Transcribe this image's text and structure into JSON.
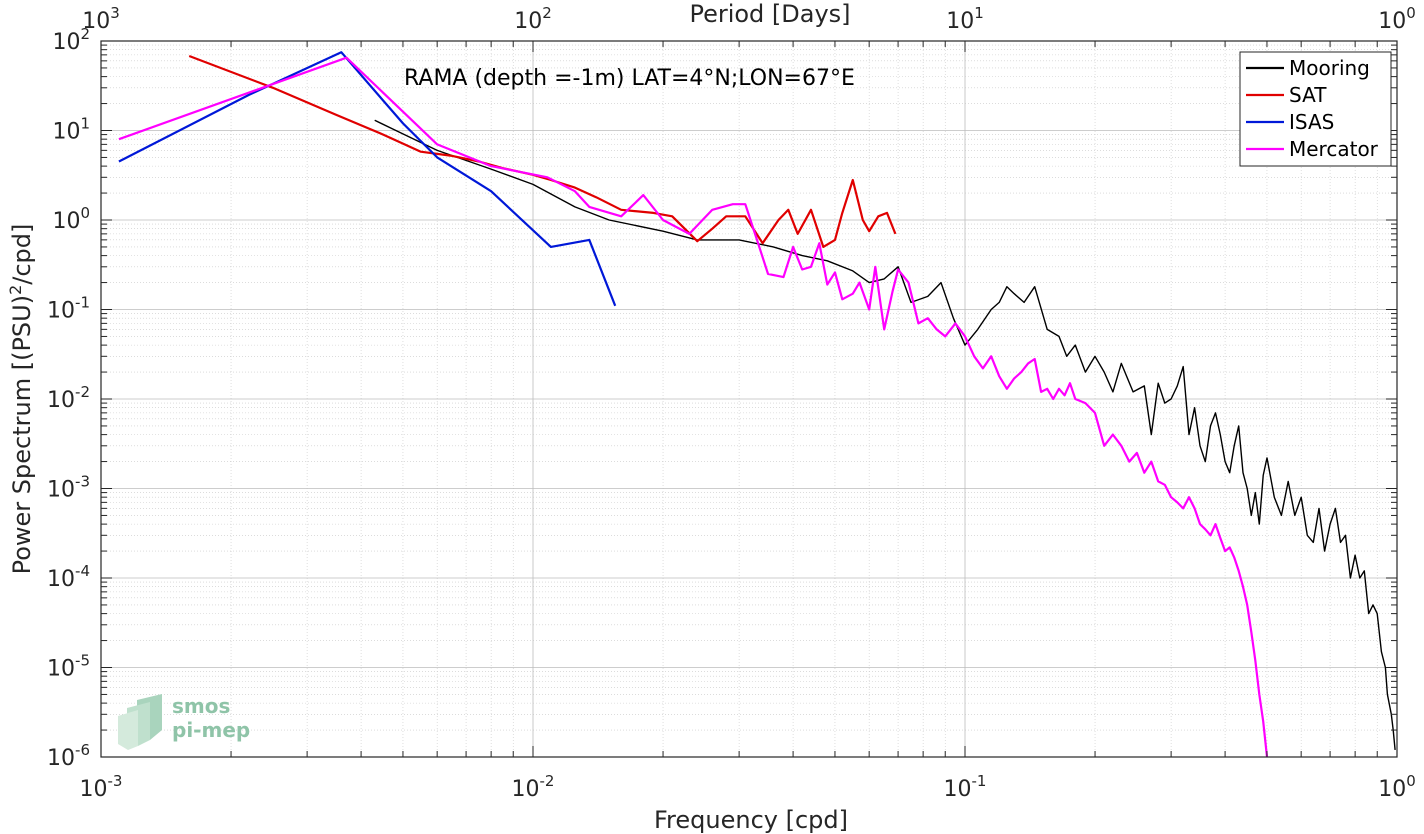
{
  "chart_data": {
    "type": "line",
    "xscale": "log",
    "yscale": "log",
    "xlim": [
      0.001,
      1
    ],
    "ylim": [
      1e-06,
      100
    ],
    "grid": true,
    "legend_position": "top-right",
    "xlabel": "Frequency [cpd]",
    "ylabel_main": "Power Spectrum [(PSU)",
    "ylabel_sup": "2",
    "ylabel_tail": "/cpd]",
    "top_xlabel": "Period [Days]",
    "annotation": "RAMA (depth =-1m) LAT=4°N;LON=67°E",
    "x_ticks": [
      {
        "value": 0.001,
        "base": "10",
        "exp": "-3"
      },
      {
        "value": 0.01,
        "base": "10",
        "exp": "-2"
      },
      {
        "value": 0.1,
        "base": "10",
        "exp": "-1"
      },
      {
        "value": 1,
        "base": "10",
        "exp": "0"
      }
    ],
    "top_ticks": [
      {
        "value": 0.001,
        "base": "10",
        "exp": "3"
      },
      {
        "value": 0.01,
        "base": "10",
        "exp": "2"
      },
      {
        "value": 0.1,
        "base": "10",
        "exp": "1"
      },
      {
        "value": 1,
        "base": "10",
        "exp": "0"
      }
    ],
    "y_ticks": [
      {
        "value": 100,
        "base": "10",
        "exp": "2"
      },
      {
        "value": 10,
        "base": "10",
        "exp": "1"
      },
      {
        "value": 1,
        "base": "10",
        "exp": "0"
      },
      {
        "value": 0.1,
        "base": "10",
        "exp": "-1"
      },
      {
        "value": 0.01,
        "base": "10",
        "exp": "-2"
      },
      {
        "value": 0.001,
        "base": "10",
        "exp": "-3"
      },
      {
        "value": 0.0001,
        "base": "10",
        "exp": "-4"
      },
      {
        "value": 1e-05,
        "base": "10",
        "exp": "-5"
      },
      {
        "value": 1e-06,
        "base": "10",
        "exp": "-6"
      }
    ],
    "series": [
      {
        "name": "Mooring",
        "color": "#000000",
        "points": [
          [
            0.0043,
            13
          ],
          [
            0.006,
            6
          ],
          [
            0.008,
            3.7
          ],
          [
            0.01,
            2.5
          ],
          [
            0.0125,
            1.4
          ],
          [
            0.015,
            1
          ],
          [
            0.02,
            0.75
          ],
          [
            0.024,
            0.6
          ],
          [
            0.03,
            0.6
          ],
          [
            0.036,
            0.5
          ],
          [
            0.042,
            0.4
          ],
          [
            0.048,
            0.35
          ],
          [
            0.055,
            0.27
          ],
          [
            0.06,
            0.2
          ],
          [
            0.065,
            0.22
          ],
          [
            0.07,
            0.3
          ],
          [
            0.075,
            0.12
          ],
          [
            0.082,
            0.14
          ],
          [
            0.088,
            0.2
          ],
          [
            0.094,
            0.08
          ],
          [
            0.1,
            0.04
          ],
          [
            0.107,
            0.06
          ],
          [
            0.115,
            0.1
          ],
          [
            0.12,
            0.12
          ],
          [
            0.125,
            0.18
          ],
          [
            0.13,
            0.15
          ],
          [
            0.137,
            0.12
          ],
          [
            0.145,
            0.18
          ],
          [
            0.155,
            0.06
          ],
          [
            0.165,
            0.05
          ],
          [
            0.172,
            0.03
          ],
          [
            0.18,
            0.04
          ],
          [
            0.19,
            0.02
          ],
          [
            0.2,
            0.03
          ],
          [
            0.21,
            0.02
          ],
          [
            0.22,
            0.012
          ],
          [
            0.23,
            0.025
          ],
          [
            0.245,
            0.012
          ],
          [
            0.26,
            0.014
          ],
          [
            0.27,
            0.004
          ],
          [
            0.28,
            0.015
          ],
          [
            0.29,
            0.009
          ],
          [
            0.3,
            0.01
          ],
          [
            0.31,
            0.014
          ],
          [
            0.32,
            0.023
          ],
          [
            0.33,
            0.004
          ],
          [
            0.34,
            0.008
          ],
          [
            0.35,
            0.003
          ],
          [
            0.36,
            0.002
          ],
          [
            0.37,
            0.005
          ],
          [
            0.38,
            0.007
          ],
          [
            0.39,
            0.004
          ],
          [
            0.4,
            0.002
          ],
          [
            0.41,
            0.0015
          ],
          [
            0.42,
            0.003
          ],
          [
            0.43,
            0.005
          ],
          [
            0.44,
            0.0015
          ],
          [
            0.45,
            0.001
          ],
          [
            0.46,
            0.0005
          ],
          [
            0.47,
            0.0009
          ],
          [
            0.48,
            0.0004
          ],
          [
            0.49,
            0.0014
          ],
          [
            0.5,
            0.0022
          ],
          [
            0.52,
            0.0008
          ],
          [
            0.54,
            0.0005
          ],
          [
            0.56,
            0.0012
          ],
          [
            0.58,
            0.0005
          ],
          [
            0.6,
            0.0008
          ],
          [
            0.62,
            0.0003
          ],
          [
            0.64,
            0.00025
          ],
          [
            0.66,
            0.0006
          ],
          [
            0.68,
            0.0002
          ],
          [
            0.7,
            0.0004
          ],
          [
            0.72,
            0.0006
          ],
          [
            0.74,
            0.00025
          ],
          [
            0.76,
            0.0003
          ],
          [
            0.78,
            0.0001
          ],
          [
            0.8,
            0.00018
          ],
          [
            0.82,
            0.0001
          ],
          [
            0.84,
            0.00012
          ],
          [
            0.86,
            4e-05
          ],
          [
            0.88,
            5e-05
          ],
          [
            0.9,
            4e-05
          ],
          [
            0.92,
            1.5e-05
          ],
          [
            0.94,
            1e-05
          ],
          [
            0.95,
            5e-06
          ],
          [
            0.97,
            3e-06
          ],
          [
            0.98,
            2e-06
          ],
          [
            0.99,
            1.2e-06
          ]
        ]
      },
      {
        "name": "SAT",
        "color": "#e00000",
        "points": [
          [
            0.0016,
            68
          ],
          [
            0.0025,
            30
          ],
          [
            0.0035,
            15
          ],
          [
            0.0045,
            9
          ],
          [
            0.0055,
            5.8
          ],
          [
            0.0065,
            5.2
          ],
          [
            0.0075,
            4.5
          ],
          [
            0.0085,
            3.8
          ],
          [
            0.01,
            3.2
          ],
          [
            0.011,
            2.8
          ],
          [
            0.0125,
            2.3
          ],
          [
            0.014,
            1.8
          ],
          [
            0.016,
            1.3
          ],
          [
            0.019,
            1.2
          ],
          [
            0.021,
            1.1
          ],
          [
            0.024,
            0.58
          ],
          [
            0.026,
            0.8
          ],
          [
            0.028,
            1.1
          ],
          [
            0.031,
            1.1
          ],
          [
            0.034,
            0.55
          ],
          [
            0.037,
            1.0
          ],
          [
            0.039,
            1.3
          ],
          [
            0.041,
            0.7
          ],
          [
            0.044,
            1.3
          ],
          [
            0.047,
            0.5
          ],
          [
            0.05,
            0.6
          ],
          [
            0.052,
            1.2
          ],
          [
            0.055,
            2.8
          ],
          [
            0.058,
            1.0
          ],
          [
            0.06,
            0.75
          ],
          [
            0.063,
            1.1
          ],
          [
            0.066,
            1.2
          ],
          [
            0.069,
            0.7
          ]
        ]
      },
      {
        "name": "ISAS",
        "color": "#0018d8",
        "points": [
          [
            0.0011,
            4.5
          ],
          [
            0.0022,
            25
          ],
          [
            0.0036,
            75
          ],
          [
            0.005,
            12
          ],
          [
            0.006,
            5
          ],
          [
            0.008,
            2.1
          ],
          [
            0.011,
            0.5
          ],
          [
            0.0135,
            0.6
          ],
          [
            0.0155,
            0.11
          ]
        ]
      },
      {
        "name": "Mercator",
        "color": "#ff00ff",
        "points": [
          [
            0.0011,
            8
          ],
          [
            0.0037,
            65
          ],
          [
            0.006,
            7
          ],
          [
            0.008,
            4
          ],
          [
            0.0108,
            3
          ],
          [
            0.0125,
            2.1
          ],
          [
            0.0135,
            1.4
          ],
          [
            0.016,
            1.1
          ],
          [
            0.018,
            1.9
          ],
          [
            0.02,
            1
          ],
          [
            0.023,
            0.7
          ],
          [
            0.026,
            1.3
          ],
          [
            0.029,
            1.5
          ],
          [
            0.031,
            1.5
          ],
          [
            0.033,
            0.6
          ],
          [
            0.035,
            0.25
          ],
          [
            0.038,
            0.23
          ],
          [
            0.04,
            0.5
          ],
          [
            0.042,
            0.28
          ],
          [
            0.044,
            0.3
          ],
          [
            0.046,
            0.55
          ],
          [
            0.048,
            0.19
          ],
          [
            0.05,
            0.26
          ],
          [
            0.052,
            0.13
          ],
          [
            0.055,
            0.15
          ],
          [
            0.057,
            0.2
          ],
          [
            0.06,
            0.1
          ],
          [
            0.062,
            0.3
          ],
          [
            0.065,
            0.06
          ],
          [
            0.068,
            0.16
          ],
          [
            0.07,
            0.28
          ],
          [
            0.074,
            0.2
          ],
          [
            0.078,
            0.07
          ],
          [
            0.082,
            0.08
          ],
          [
            0.086,
            0.06
          ],
          [
            0.09,
            0.05
          ],
          [
            0.095,
            0.07
          ],
          [
            0.1,
            0.05
          ],
          [
            0.105,
            0.03
          ],
          [
            0.11,
            0.022
          ],
          [
            0.115,
            0.03
          ],
          [
            0.12,
            0.018
          ],
          [
            0.125,
            0.013
          ],
          [
            0.13,
            0.017
          ],
          [
            0.135,
            0.02
          ],
          [
            0.14,
            0.025
          ],
          [
            0.145,
            0.028
          ],
          [
            0.15,
            0.012
          ],
          [
            0.155,
            0.013
          ],
          [
            0.16,
            0.01
          ],
          [
            0.165,
            0.013
          ],
          [
            0.17,
            0.011
          ],
          [
            0.175,
            0.015
          ],
          [
            0.18,
            0.01
          ],
          [
            0.19,
            0.009
          ],
          [
            0.2,
            0.007
          ],
          [
            0.21,
            0.003
          ],
          [
            0.22,
            0.004
          ],
          [
            0.23,
            0.003
          ],
          [
            0.24,
            0.002
          ],
          [
            0.25,
            0.0025
          ],
          [
            0.26,
            0.0015
          ],
          [
            0.27,
            0.002
          ],
          [
            0.28,
            0.0012
          ],
          [
            0.29,
            0.0011
          ],
          [
            0.3,
            0.0008
          ],
          [
            0.31,
            0.0007
          ],
          [
            0.32,
            0.0006
          ],
          [
            0.33,
            0.0008
          ],
          [
            0.34,
            0.0006
          ],
          [
            0.35,
            0.0004
          ],
          [
            0.36,
            0.00035
          ],
          [
            0.37,
            0.0003
          ],
          [
            0.38,
            0.0004
          ],
          [
            0.39,
            0.00028
          ],
          [
            0.4,
            0.0002
          ],
          [
            0.41,
            0.00022
          ],
          [
            0.42,
            0.00017
          ],
          [
            0.43,
            0.00012
          ],
          [
            0.44,
            8e-05
          ],
          [
            0.45,
            5e-05
          ],
          [
            0.46,
            2.5e-05
          ],
          [
            0.47,
            1.2e-05
          ],
          [
            0.48,
            5e-06
          ],
          [
            0.49,
            2.5e-06
          ],
          [
            0.5,
            1e-06
          ]
        ]
      }
    ]
  },
  "logo": {
    "line1": "smos",
    "line2": "pi-mep"
  }
}
